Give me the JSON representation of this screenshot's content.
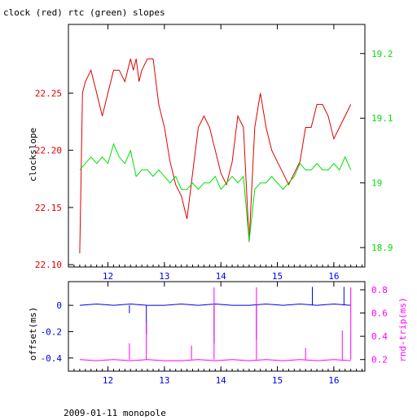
{
  "chart_data": [
    {
      "type": "line",
      "title": "clock (red) rtc (green) slopes",
      "xlabel": "",
      "ylabel": "clockslope",
      "xlim": [
        11.3,
        16.55
      ],
      "ylim": [
        22.098,
        22.31
      ],
      "y2lim": [
        18.87,
        19.245
      ],
      "x_ticks": [
        12,
        13,
        14,
        15,
        16
      ],
      "y_ticks": [
        22.1,
        22.15,
        22.2,
        22.25
      ],
      "y2_ticks": [
        18.9,
        19,
        19.1,
        19.2
      ],
      "grid": false,
      "series": [
        {
          "name": "clock",
          "axis": "left",
          "color": "#e00000",
          "x": [
            11.5,
            11.55,
            11.6,
            11.7,
            11.8,
            11.9,
            12.0,
            12.1,
            12.2,
            12.3,
            12.4,
            12.45,
            12.5,
            12.55,
            12.6,
            12.7,
            12.8,
            12.9,
            13.0,
            13.1,
            13.2,
            13.3,
            13.4,
            13.5,
            13.6,
            13.7,
            13.8,
            13.9,
            14.0,
            14.1,
            14.2,
            14.3,
            14.4,
            14.5,
            14.6,
            14.7,
            14.8,
            14.9,
            15.0,
            15.1,
            15.2,
            15.3,
            15.4,
            15.5,
            15.6,
            15.7,
            15.8,
            15.9,
            16.0,
            16.1,
            16.2,
            16.3
          ],
          "values": [
            22.11,
            22.25,
            22.26,
            22.27,
            22.25,
            22.23,
            22.25,
            22.27,
            22.27,
            22.26,
            22.28,
            22.27,
            22.28,
            22.26,
            22.27,
            22.28,
            22.28,
            22.24,
            22.22,
            22.19,
            22.17,
            22.16,
            22.14,
            22.18,
            22.22,
            22.23,
            22.22,
            22.2,
            22.18,
            22.17,
            22.19,
            22.23,
            22.22,
            22.12,
            22.22,
            22.25,
            22.22,
            22.2,
            22.19,
            22.18,
            22.17,
            22.18,
            22.19,
            22.22,
            22.22,
            22.24,
            22.24,
            22.23,
            22.21,
            22.22,
            22.23,
            22.24
          ]
        },
        {
          "name": "rtc",
          "axis": "right",
          "color": "#00e000",
          "x": [
            11.5,
            11.6,
            11.7,
            11.8,
            11.9,
            12.0,
            12.1,
            12.2,
            12.3,
            12.4,
            12.5,
            12.6,
            12.7,
            12.8,
            12.9,
            13.0,
            13.1,
            13.2,
            13.3,
            13.4,
            13.5,
            13.6,
            13.7,
            13.8,
            13.9,
            14.0,
            14.1,
            14.2,
            14.3,
            14.4,
            14.5,
            14.6,
            14.7,
            14.8,
            14.9,
            15.0,
            15.1,
            15.2,
            15.3,
            15.4,
            15.5,
            15.6,
            15.7,
            15.8,
            15.9,
            16.0,
            16.1,
            16.2,
            16.3
          ],
          "values": [
            19.02,
            19.03,
            19.04,
            19.03,
            19.04,
            19.03,
            19.06,
            19.04,
            19.03,
            19.05,
            19.01,
            19.02,
            19.02,
            19.01,
            19.02,
            19.01,
            19.0,
            19.01,
            18.99,
            18.99,
            19.0,
            18.99,
            19.0,
            19.0,
            19.01,
            18.99,
            19.0,
            19.01,
            19.0,
            19.01,
            18.91,
            18.99,
            19.0,
            19.0,
            19.01,
            19.0,
            18.99,
            19.0,
            19.01,
            19.03,
            19.02,
            19.02,
            19.03,
            19.02,
            19.02,
            19.03,
            19.02,
            19.04,
            19.02
          ]
        }
      ]
    },
    {
      "type": "line",
      "title": "",
      "xlabel": "",
      "ylabel": "offset(ms)",
      "y2label": "rnd-trip(ms)",
      "xlim": [
        11.3,
        16.55
      ],
      "ylim": [
        -0.5,
        0.18
      ],
      "y2lim": [
        0.1,
        0.87
      ],
      "x_ticks": [
        12,
        13,
        14,
        15,
        16
      ],
      "y_ticks": [
        0,
        -0.2,
        -0.4
      ],
      "y2_ticks": [
        0.2,
        0.4,
        0.6,
        0.8
      ],
      "grid": false,
      "series": [
        {
          "name": "offset",
          "axis": "left",
          "color": "#0000e0",
          "x": [
            11.5,
            11.8,
            12.1,
            12.4,
            12.7,
            13.0,
            13.3,
            13.6,
            13.9,
            14.2,
            14.5,
            14.8,
            15.1,
            15.4,
            15.7,
            16.0,
            16.3
          ],
          "values": [
            0.0,
            0.01,
            0.0,
            0.01,
            0.0,
            0.0,
            0.01,
            0.0,
            0.01,
            0.0,
            0.0,
            0.01,
            0.0,
            0.01,
            0.0,
            0.01,
            0.0
          ],
          "spikes": [
            [
              12.38,
              -0.06
            ],
            [
              12.68,
              -0.22
            ],
            [
              13.88,
              -0.29
            ],
            [
              14.63,
              -0.26
            ],
            [
              15.62,
              0.14
            ],
            [
              16.18,
              0.14
            ]
          ]
        },
        {
          "name": "rnd-trip",
          "axis": "right",
          "color": "#ff00ff",
          "x": [
            11.5,
            11.8,
            12.1,
            12.4,
            12.7,
            13.0,
            13.3,
            13.6,
            13.9,
            14.2,
            14.5,
            14.8,
            15.1,
            15.4,
            15.7,
            16.0,
            16.3
          ],
          "values": [
            0.2,
            0.19,
            0.2,
            0.19,
            0.2,
            0.19,
            0.19,
            0.2,
            0.19,
            0.2,
            0.19,
            0.2,
            0.19,
            0.2,
            0.19,
            0.2,
            0.19
          ],
          "spikes": [
            [
              12.38,
              0.34
            ],
            [
              12.68,
              0.52
            ],
            [
              13.48,
              0.32
            ],
            [
              13.88,
              0.82
            ],
            [
              14.63,
              0.82
            ],
            [
              15.5,
              0.3
            ],
            [
              16.15,
              0.45
            ],
            [
              16.3,
              0.82
            ]
          ]
        }
      ]
    }
  ],
  "footer_label": "2009-01-11 monopole"
}
